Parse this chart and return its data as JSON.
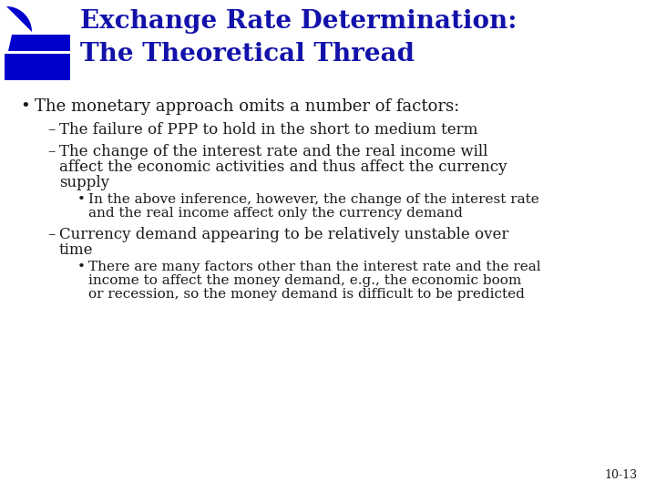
{
  "title_line1": "Exchange Rate Determination:",
  "title_line2": "The Theoretical Thread",
  "title_color": "#1212aa",
  "title_fontsize": 20,
  "background_color": "#ffffff",
  "text_color": "#1a1a1a",
  "bullet1": "The monetary approach omits a number of factors:",
  "sub1": "The failure of PPP to hold in the short to medium term",
  "sub2_line1": "The change of the interest rate and the real income will",
  "sub2_line2": "affect the economic activities and thus affect the currency",
  "sub2_line3": "supply",
  "subsub1_line1": "In the above inference, however, the change of the interest rate",
  "subsub1_line2": "and the real income affect only the currency demand",
  "sub3_line1": "Currency demand appearing to be relatively unstable over",
  "sub3_line2": "time",
  "subsub2_line1": "There are many factors other than the interest rate and the real",
  "subsub2_line2": "income to affect the money demand, e.g., the economic boom",
  "subsub2_line3": "or recession, so the money demand is difficult to be predicted",
  "page_num": "10-13",
  "logo_color": "#0000cc",
  "fs_bullet": 13,
  "fs_sub": 12,
  "fs_subsub": 11
}
